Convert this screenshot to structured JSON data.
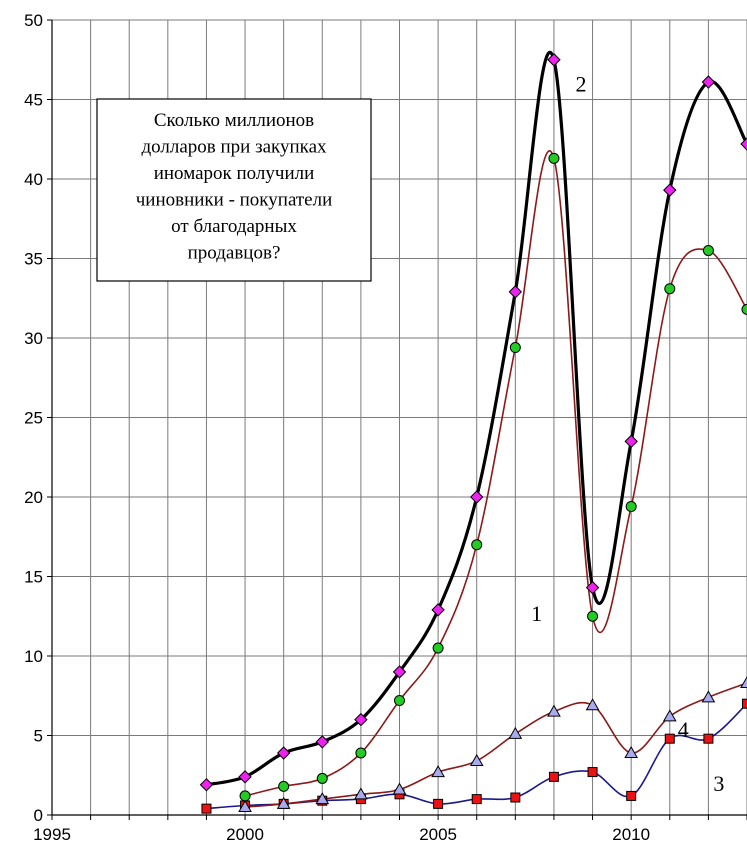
{
  "chart_data": {
    "type": "line",
    "title": "",
    "xlabel": "",
    "ylabel": "",
    "xlim": [
      1995,
      2013
    ],
    "ylim": [
      0,
      50
    ],
    "x_ticks": [
      1995,
      2000,
      2005,
      2010
    ],
    "y_ticks": [
      0,
      5,
      10,
      15,
      20,
      25,
      30,
      35,
      40,
      45,
      50
    ],
    "grid": true,
    "annotation_box": {
      "lines": [
        "Сколько миллионов",
        "долларов при закупках",
        "иномарок получили",
        "чиновники - покупатели",
        "от благодарных",
        "продавцов?"
      ]
    },
    "series": [
      {
        "label": "1",
        "color": "#8b1a1a",
        "marker": "circle",
        "marker_color": "#22cc22",
        "x": [
          2000,
          2001,
          2002,
          2003,
          2004,
          2005,
          2006,
          2007,
          2008,
          2009,
          2010,
          2011,
          2012,
          2013
        ],
        "values": [
          1.2,
          1.8,
          2.3,
          3.9,
          7.2,
          10.5,
          17.0,
          29.4,
          41.3,
          12.5,
          19.4,
          33.1,
          35.5,
          31.8
        ]
      },
      {
        "label": "2",
        "color": "#000000",
        "marker": "diamond",
        "marker_color": "#ee22ee",
        "x": [
          1999,
          2000,
          2001,
          2002,
          2003,
          2004,
          2005,
          2006,
          2007,
          2008,
          2009,
          2010,
          2011,
          2012,
          2013
        ],
        "values": [
          1.9,
          2.4,
          3.9,
          4.6,
          6.0,
          9.0,
          12.9,
          20.0,
          32.9,
          47.5,
          14.3,
          23.5,
          39.3,
          46.1,
          42.2
        ]
      },
      {
        "label": "3",
        "color": "#1a1a8b",
        "marker": "square",
        "marker_color": "#ee1111",
        "x": [
          1999,
          2000,
          2001,
          2002,
          2003,
          2004,
          2005,
          2006,
          2007,
          2008,
          2009,
          2010,
          2011,
          2012,
          2013
        ],
        "values": [
          0.4,
          0.6,
          0.7,
          0.9,
          1.0,
          1.3,
          0.7,
          1.0,
          1.1,
          2.4,
          2.7,
          1.2,
          4.8,
          4.8,
          7.0
        ]
      },
      {
        "label": "4",
        "color": "#8b1a1a",
        "marker": "triangle",
        "marker_color": "#aaaaee",
        "x": [
          2000,
          2001,
          2002,
          2003,
          2004,
          2005,
          2006,
          2007,
          2008,
          2009,
          2010,
          2011,
          2012,
          2013
        ],
        "values": [
          0.5,
          0.7,
          1.0,
          1.3,
          1.6,
          2.7,
          3.4,
          5.1,
          6.5,
          6.9,
          3.9,
          6.2,
          7.4,
          8.3
        ]
      }
    ]
  }
}
